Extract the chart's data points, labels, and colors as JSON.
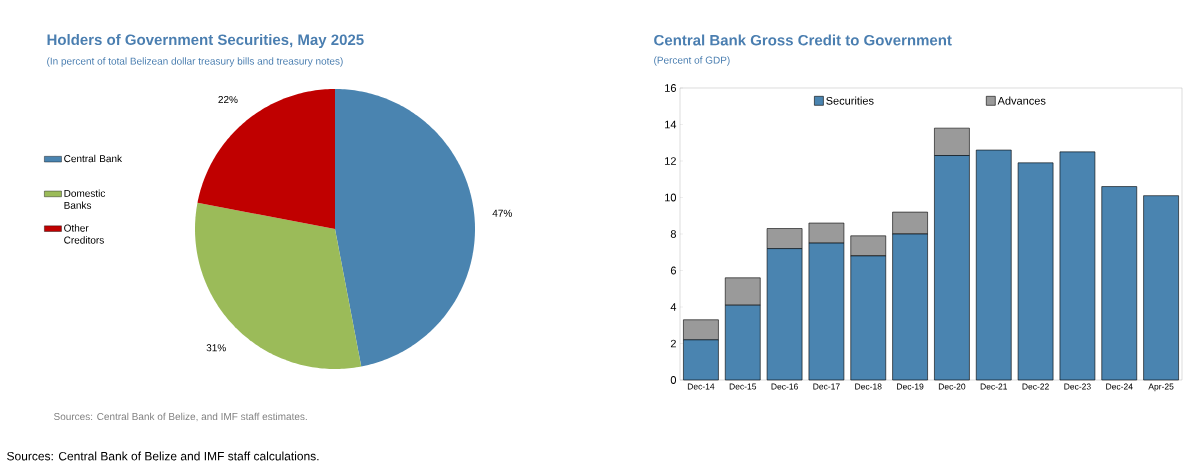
{
  "chart_data": [
    {
      "type": "pie",
      "title": "Holders of Government Securities, May 2025",
      "subtitle": "(In percent of total Belizean dollar treasury bills and treasury notes)",
      "categories": [
        "Central Bank",
        "Domestic Banks",
        "Other Creditors"
      ],
      "values": [
        47,
        31,
        22
      ],
      "colors": [
        "#4a84b0",
        "#9bbb59",
        "#c00000"
      ],
      "value_labels": [
        "47%",
        "31%",
        "22%"
      ],
      "legend": "left",
      "annotations": [
        "Sources: Central Bank of Belize, and IMF staff estimates.",
        "Sources: Central Bank of Belize and IMF staff calculations."
      ]
    },
    {
      "type": "bar",
      "stacked": true,
      "title": "Central Bank Gross Credit to Government",
      "subtitle": "(Percent of GDP)",
      "categories": [
        "Dec-14",
        "Dec-15",
        "Dec-16",
        "Dec-17",
        "Dec-18",
        "Dec-19",
        "Dec-20",
        "Dec-21",
        "Dec-22",
        "Dec-23",
        "Dec-24",
        "Apr-25"
      ],
      "series": [
        {
          "name": "Securities",
          "color": "#4a84b0",
          "values": [
            2.2,
            4.1,
            7.2,
            7.5,
            6.8,
            8.0,
            12.3,
            12.6,
            11.9,
            12.5,
            10.6,
            10.1
          ]
        },
        {
          "name": "Advances",
          "color": "#9a9a9a",
          "values": [
            1.1,
            1.5,
            1.1,
            1.1,
            1.1,
            1.2,
            1.5,
            0,
            0,
            0,
            0,
            0
          ]
        }
      ],
      "ylim": [
        0,
        16
      ],
      "yticks": [
        0,
        2,
        4,
        6,
        8,
        10,
        12,
        14,
        16
      ],
      "legend": "top"
    }
  ]
}
